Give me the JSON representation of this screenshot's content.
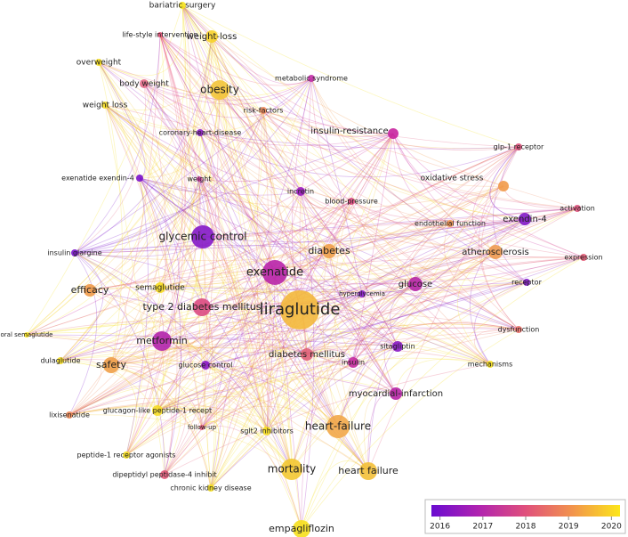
{
  "network": {
    "nodes": [
      {
        "label": "bariatric surgery",
        "color": "#f5e21c"
      },
      {
        "label": "life-style intervention",
        "color": "#e8527a"
      },
      {
        "label": "weight-loss",
        "color": "#f7d32a"
      },
      {
        "label": "overweight",
        "color": "#f6e01e"
      },
      {
        "label": "metabolic syndrome",
        "color": "#c42ea8"
      },
      {
        "label": "body weight",
        "color": "#e46a8a"
      },
      {
        "label": "obesity",
        "color": "#f3c43a"
      },
      {
        "label": "risk-factors",
        "color": "#ee8a5c"
      },
      {
        "label": "weight loss",
        "color": "#f6de24"
      },
      {
        "label": "coronary-heart-disease",
        "color": "#8a1cc8"
      },
      {
        "label": "insulin-resistance",
        "color": "#c8239e"
      },
      {
        "label": "glp-1 receptor",
        "color": "#e0527c"
      },
      {
        "label": "exenatide exendin-4",
        "color": "#7a12cc"
      },
      {
        "label": "weight",
        "color": "#cc3a9c"
      },
      {
        "label": "oxidative stress",
        "color": "#f19a4a"
      },
      {
        "label": "incretin",
        "color": "#9a1ac0"
      },
      {
        "label": "blood-pressure",
        "color": "#dc4a80"
      },
      {
        "label": "activation",
        "color": "#e0527c"
      },
      {
        "label": "exendin-4",
        "color": "#8216c6"
      },
      {
        "label": "endothelial function",
        "color": "#ef9250"
      },
      {
        "label": "glycemic control",
        "color": "#8418c8"
      },
      {
        "label": "diabetes",
        "color": "#f0a04a"
      },
      {
        "label": "atherosclerosis",
        "color": "#ee9a50"
      },
      {
        "label": "insulin glargine",
        "color": "#7a12cc"
      },
      {
        "label": "expression",
        "color": "#e45a76"
      },
      {
        "label": "exenatide",
        "color": "#b824a8"
      },
      {
        "label": "efficacy",
        "color": "#f09a48"
      },
      {
        "label": "semaglutide",
        "color": "#f6dc20"
      },
      {
        "label": "glucose",
        "color": "#b524a6"
      },
      {
        "label": "receptor",
        "color": "#8016c8"
      },
      {
        "label": "hyperglycemia",
        "color": "#8418c8"
      },
      {
        "label": "liraglutide",
        "color": "#f3b83c"
      },
      {
        "label": "type 2 diabetes mellitus",
        "color": "#dc4a82"
      },
      {
        "label": "oral semaglutide",
        "color": "#f8e41a"
      },
      {
        "label": "dysfunction",
        "color": "#ea7068"
      },
      {
        "label": "metformin",
        "color": "#b224aa"
      },
      {
        "label": "sitagliptin",
        "color": "#8a1ac6"
      },
      {
        "label": "dulaglutide",
        "color": "#f6de22"
      },
      {
        "label": "safety",
        "color": "#f09e48"
      },
      {
        "label": "diabetes mellitus",
        "color": "#e06078"
      },
      {
        "label": "insulin",
        "color": "#c42a9e"
      },
      {
        "label": "mechanisms",
        "color": "#f6e01e"
      },
      {
        "label": "glucose control",
        "color": "#8a18c6"
      },
      {
        "label": "myocardial-infarction",
        "color": "#b824a6"
      },
      {
        "label": "lixisenatide",
        "color": "#ee8a58"
      },
      {
        "label": "glucagon-like peptide-1 recept",
        "color": "#f6dc22"
      },
      {
        "label": "follow-up",
        "color": "#e05a7c"
      },
      {
        "label": "sglt2 inhibitors",
        "color": "#f6de20"
      },
      {
        "label": "heart-failure",
        "color": "#f2a84a"
      },
      {
        "label": "peptide-1 receptor agonists",
        "color": "#f6e01e"
      },
      {
        "label": "mortality",
        "color": "#f3c832"
      },
      {
        "label": "dipeptidyl peptidase-4 inhibit",
        "color": "#e45a7a"
      },
      {
        "label": "heart failure",
        "color": "#f3c038"
      },
      {
        "label": "chronic kidney disease",
        "color": "#f6e01e"
      },
      {
        "label": "empagliflozin",
        "color": "#f6e01c"
      }
    ]
  },
  "legend": {
    "range": [
      2015.8,
      2020.2
    ],
    "ticks": [
      2016,
      2017,
      2018,
      2019,
      2020
    ],
    "colors": [
      "#6a0cd0",
      "#b023b0",
      "#e0507c",
      "#f2944c",
      "#fce61a"
    ]
  }
}
